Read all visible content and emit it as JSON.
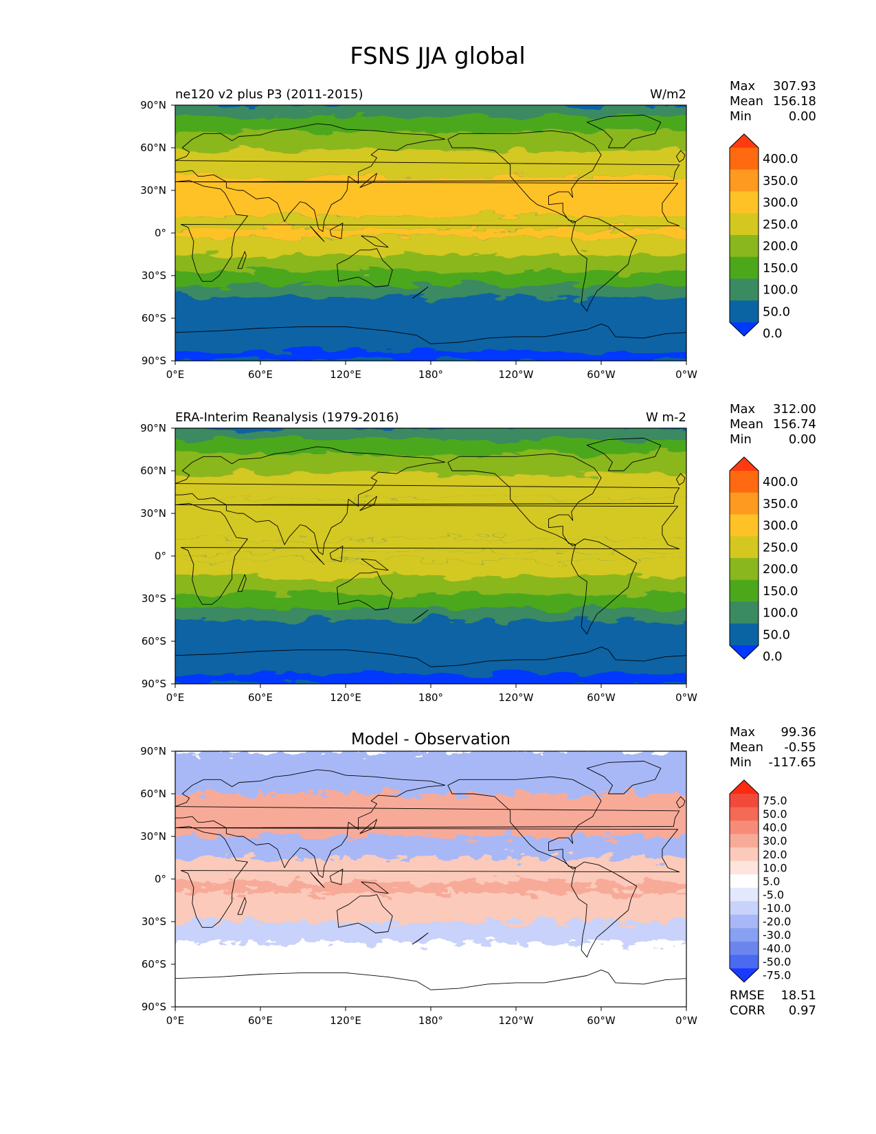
{
  "figure": {
    "title": "FSNS JJA global"
  },
  "axes": {
    "lon_ticks": [
      "0°E",
      "60°E",
      "120°E",
      "180°",
      "120°W",
      "60°W",
      "0°W"
    ],
    "lat_ticks": [
      "90°N",
      "60°N",
      "30°N",
      "0°",
      "30°S",
      "60°S",
      "90°S"
    ]
  },
  "panels": [
    {
      "id": "model",
      "title_left": "ne120 v2 plus P3 (2011-2015)",
      "title_center": "",
      "units": "W/m2",
      "stats": [
        {
          "label": "Max",
          "value": "307.93"
        },
        {
          "label": "Mean",
          "value": "156.18"
        },
        {
          "label": "Min",
          "value": "0.00"
        }
      ],
      "colorbar": {
        "levels": [
          "400.0",
          "350.0",
          "300.0",
          "250.0",
          "200.0",
          "150.0",
          "100.0",
          "50.0",
          "0.0"
        ],
        "colors": [
          "#ff3a10",
          "#ff6a10",
          "#ff9a20",
          "#ffc226",
          "#d4c820",
          "#8ab71e",
          "#4ca81a",
          "#3a8a62",
          "#0a64a4",
          "#0038ff"
        ]
      }
    },
    {
      "id": "obs",
      "title_left": "ERA-Interim Reanalysis (1979-2016)",
      "title_center": "",
      "units": "W m-2",
      "stats": [
        {
          "label": "Max",
          "value": "312.00"
        },
        {
          "label": "Mean",
          "value": "156.74"
        },
        {
          "label": "Min",
          "value": "0.00"
        }
      ],
      "colorbar": {
        "levels": [
          "400.0",
          "350.0",
          "300.0",
          "250.0",
          "200.0",
          "150.0",
          "100.0",
          "50.0",
          "0.0"
        ],
        "colors": [
          "#ff3a10",
          "#ff6a10",
          "#ff9a20",
          "#ffc226",
          "#d4c820",
          "#8ab71e",
          "#4ca81a",
          "#3a8a62",
          "#0a64a4",
          "#0038ff"
        ]
      }
    },
    {
      "id": "diff",
      "title_left": "",
      "title_center": "Model - Observation",
      "units": "",
      "stats": [
        {
          "label": "Max",
          "value": "99.36"
        },
        {
          "label": "Mean",
          "value": "-0.55"
        },
        {
          "label": "Min",
          "value": "-117.65"
        }
      ],
      "colorbar": {
        "levels": [
          "75.0",
          "50.0",
          "40.0",
          "30.0",
          "20.0",
          "10.0",
          "5.0",
          "-5.0",
          "-10.0",
          "-20.0",
          "-30.0",
          "-40.0",
          "-50.0",
          "-75.0"
        ],
        "colors": [
          "#ff2a10",
          "#f24a3a",
          "#f46a56",
          "#f68c78",
          "#f8aa98",
          "#fbcaba",
          "#fde4dc",
          "#ffffff",
          "#e4e8fc",
          "#c8d2fa",
          "#a8b8f6",
          "#88a0f2",
          "#6a86ee",
          "#4a6af0",
          "#1a3aff"
        ]
      },
      "extra_stats": [
        {
          "label": "RMSE",
          "value": "18.51"
        },
        {
          "label": "CORR",
          "value": "0.97"
        }
      ]
    }
  ],
  "chart_data": {
    "type": "heatmap",
    "title": "FSNS JJA global",
    "variable": "FSNS",
    "season": "JJA",
    "xlim": [
      0,
      360
    ],
    "ylim": [
      -90,
      90
    ],
    "maps": [
      {
        "name": "ne120 v2 plus P3 (2011-2015)",
        "units": "W/m2",
        "max": 307.93,
        "mean": 156.18,
        "min": 0.0,
        "contour_levels": [
          0,
          50,
          100,
          150,
          200,
          250,
          300,
          350,
          400
        ],
        "zonal_bands": [
          {
            "lat": [
              82,
              90
            ],
            "value": 75
          },
          {
            "lat": [
              72,
              82
            ],
            "value": 125
          },
          {
            "lat": [
              58,
              72
            ],
            "value": 175
          },
          {
            "lat": [
              40,
              58
            ],
            "value": 225
          },
          {
            "lat": [
              12,
              40
            ],
            "value": 265
          },
          {
            "lat": [
              3,
              12
            ],
            "value": 225
          },
          {
            "lat": [
              -3,
              3
            ],
            "value": 255
          },
          {
            "lat": [
              -15,
              -3
            ],
            "value": 225
          },
          {
            "lat": [
              -27,
              -15
            ],
            "value": 175
          },
          {
            "lat": [
              -37,
              -27
            ],
            "value": 125
          },
          {
            "lat": [
              -45,
              -37
            ],
            "value": 75
          },
          {
            "lat": [
              -83,
              -45
            ],
            "value": 25
          },
          {
            "lat": [
              -90,
              -83
            ],
            "value": -10
          }
        ]
      },
      {
        "name": "ERA-Interim Reanalysis (1979-2016)",
        "units": "W m-2",
        "max": 312.0,
        "mean": 156.74,
        "min": 0.0,
        "contour_levels": [
          0,
          50,
          100,
          150,
          200,
          250,
          300,
          350,
          400
        ],
        "zonal_bands": [
          {
            "lat": [
              82,
              90
            ],
            "value": 75
          },
          {
            "lat": [
              72,
              82
            ],
            "value": 125
          },
          {
            "lat": [
              58,
              72
            ],
            "value": 175
          },
          {
            "lat": [
              40,
              58
            ],
            "value": 225
          },
          {
            "lat": [
              12,
              40
            ],
            "value": 240
          },
          {
            "lat": [
              3,
              12
            ],
            "value": 225
          },
          {
            "lat": [
              -3,
              3
            ],
            "value": 225
          },
          {
            "lat": [
              -15,
              -3
            ],
            "value": 225
          },
          {
            "lat": [
              -27,
              -15
            ],
            "value": 175
          },
          {
            "lat": [
              -37,
              -27
            ],
            "value": 125
          },
          {
            "lat": [
              -45,
              -37
            ],
            "value": 75
          },
          {
            "lat": [
              -83,
              -45
            ],
            "value": 25
          },
          {
            "lat": [
              -90,
              -83
            ],
            "value": -10
          }
        ]
      },
      {
        "name": "Model - Observation",
        "units": "",
        "max": 99.36,
        "mean": -0.55,
        "min": -117.65,
        "rmse": 18.51,
        "corr": 0.97,
        "contour_levels": [
          -75,
          -50,
          -40,
          -30,
          -20,
          -10,
          -5,
          5,
          10,
          20,
          30,
          40,
          50,
          75
        ],
        "zonal_bands": [
          {
            "lat": [
              60,
              90
            ],
            "value": -25
          },
          {
            "lat": [
              30,
              60
            ],
            "value": 25
          },
          {
            "lat": [
              15,
              30
            ],
            "value": -25
          },
          {
            "lat": [
              -2,
              15
            ],
            "value": 15
          },
          {
            "lat": [
              -10,
              -2
            ],
            "value": 25
          },
          {
            "lat": [
              -30,
              -10
            ],
            "value": 12
          },
          {
            "lat": [
              -45,
              -30
            ],
            "value": -12
          },
          {
            "lat": [
              -90,
              -45
            ],
            "value": 0
          }
        ]
      }
    ]
  }
}
